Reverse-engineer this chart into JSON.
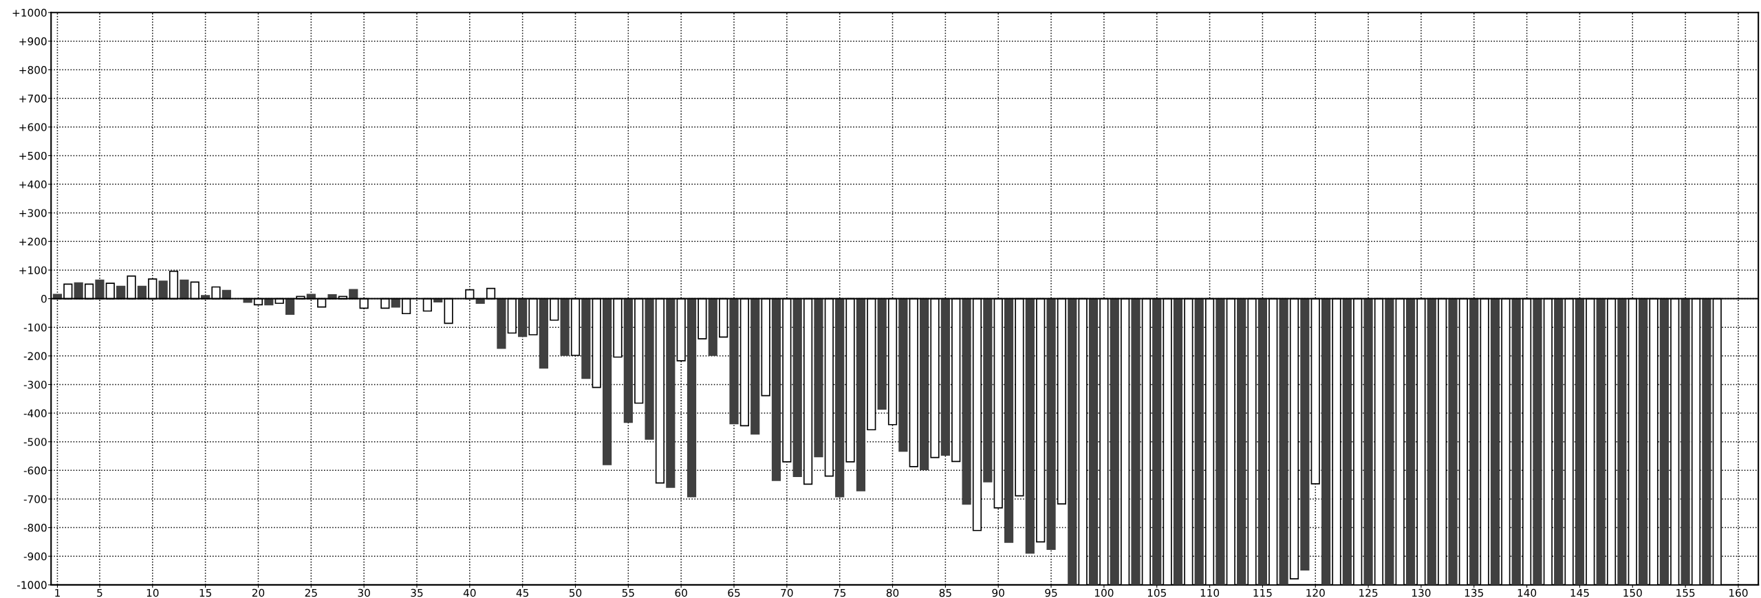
{
  "chart_data": {
    "type": "bar",
    "series": [
      {
        "color": "#404040",
        "x": [
          1,
          3,
          5,
          7,
          9,
          11,
          13,
          15,
          17,
          19,
          21,
          23,
          25,
          27,
          29,
          31,
          33,
          35,
          37,
          39,
          41,
          43,
          45,
          47,
          49,
          51,
          53,
          55,
          57,
          59,
          61,
          63,
          65,
          67,
          69,
          71,
          73,
          75,
          77,
          79,
          81,
          83,
          85,
          87,
          89,
          91,
          93,
          95,
          97,
          99,
          101,
          103,
          105,
          107,
          109,
          111,
          113,
          115,
          117,
          119,
          121,
          123,
          125,
          127,
          129,
          131,
          133,
          135,
          137,
          139,
          141,
          143,
          145,
          147,
          149,
          151,
          153,
          155,
          157
        ],
        "values": [
          15,
          55,
          65,
          43,
          43,
          61,
          65,
          11,
          29,
          -12,
          -21,
          -54,
          15,
          14,
          32,
          0,
          -29,
          0,
          -11,
          0,
          -16,
          -173,
          -132,
          -242,
          -198,
          -278,
          -580,
          -432,
          -491,
          -659,
          -692,
          -198,
          -437,
          -473,
          -635,
          -621,
          -552,
          -692,
          -671,
          -386,
          -533,
          -597,
          -547,
          -718,
          -640,
          -851,
          -889,
          -876,
          -1000,
          -1000,
          -1000,
          -1000,
          -1000,
          -1000,
          -1000,
          -1000,
          -1000,
          -1000,
          -1000,
          -948,
          -1000,
          -1000,
          -1000,
          -1000,
          -1000,
          -1000,
          -1000,
          -1000,
          -1000,
          -1000,
          -1000,
          -1000,
          -1000,
          -1000,
          -1000,
          -1000,
          -1000,
          -1000,
          -1000
        ]
      },
      {
        "color": "#ffffff",
        "x": [
          2,
          4,
          6,
          8,
          10,
          12,
          14,
          16,
          18,
          20,
          22,
          24,
          26,
          28,
          30,
          32,
          34,
          36,
          38,
          40,
          42,
          44,
          46,
          48,
          50,
          52,
          54,
          56,
          58,
          60,
          62,
          64,
          66,
          68,
          70,
          72,
          74,
          76,
          78,
          80,
          82,
          84,
          86,
          88,
          90,
          92,
          94,
          96,
          98,
          100,
          102,
          104,
          106,
          108,
          110,
          112,
          114,
          116,
          118,
          120,
          122,
          124,
          126,
          128,
          130,
          132,
          134,
          136,
          138,
          140,
          142,
          144,
          146,
          148,
          150,
          152,
          154,
          156,
          158
        ],
        "values": [
          51,
          51,
          54,
          79,
          69,
          96,
          58,
          41,
          0,
          -21,
          -16,
          8,
          -29,
          8,
          -33,
          -33,
          -52,
          -43,
          -86,
          31,
          36,
          -120,
          -126,
          -75,
          -198,
          -310,
          -204,
          -365,
          -644,
          -217,
          -140,
          -134,
          -444,
          -339,
          -570,
          -648,
          -620,
          -570,
          -458,
          -440,
          -587,
          -555,
          -569,
          -810,
          -731,
          -689,
          -850,
          -717,
          -1000,
          -1000,
          -1000,
          -1000,
          -1000,
          -1000,
          -1000,
          -1000,
          -1000,
          -1000,
          -979,
          -647,
          -1000,
          -1000,
          -1000,
          -1000,
          -1000,
          -1000,
          -1000,
          -1000,
          -1000,
          -1000,
          -1000,
          -1000,
          -1000,
          -1000,
          -1000,
          -1000,
          -1000,
          -1000,
          -1000
        ]
      }
    ],
    "xlim": [
      0.4,
      161.9
    ],
    "xticks": [
      1,
      5,
      10,
      15,
      20,
      25,
      30,
      35,
      40,
      45,
      50,
      55,
      60,
      65,
      70,
      75,
      80,
      85,
      90,
      95,
      100,
      105,
      110,
      115,
      120,
      125,
      130,
      135,
      140,
      145,
      150,
      155,
      160
    ],
    "ylim": [
      -1000,
      1000
    ],
    "yticks": [
      {
        "value": -1000,
        "label": "-1000"
      },
      {
        "value": -900,
        "label": "-900"
      },
      {
        "value": -800,
        "label": "-800"
      },
      {
        "value": -700,
        "label": "-700"
      },
      {
        "value": -600,
        "label": "-600"
      },
      {
        "value": -500,
        "label": "-500"
      },
      {
        "value": -400,
        "label": "-400"
      },
      {
        "value": -300,
        "label": "-300"
      },
      {
        "value": -200,
        "label": "-200"
      },
      {
        "value": -100,
        "label": "-100"
      },
      0,
      {
        "value": 100,
        "label": "+100"
      },
      {
        "value": 200,
        "label": "+200"
      },
      {
        "value": 300,
        "label": "+300"
      },
      {
        "value": 400,
        "label": "+400"
      },
      {
        "value": 500,
        "label": "+500"
      },
      {
        "value": 600,
        "label": "+600"
      },
      {
        "value": 700,
        "label": "+700"
      },
      {
        "value": 800,
        "label": "+800"
      },
      {
        "value": 900,
        "label": "+900"
      },
      {
        "value": 1000,
        "label": "+1000"
      }
    ],
    "ref_lines": [
      {
        "axis": "y",
        "value": 0,
        "color": "#000000",
        "line_style": "solid"
      }
    ],
    "grid": true
  }
}
